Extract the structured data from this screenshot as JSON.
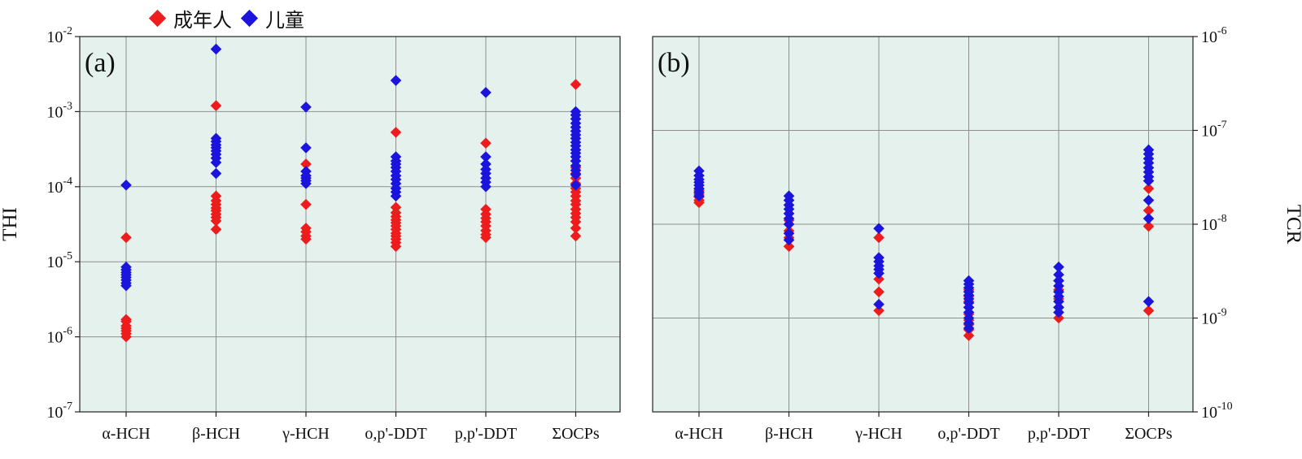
{
  "legend": {
    "adult": {
      "label": "成年人",
      "color": "#ee1c1c"
    },
    "child": {
      "label": "儿童",
      "color": "#1a14dc"
    }
  },
  "chart_data": [
    {
      "type": "scatter",
      "panel_label": "(a)",
      "ylabel": "THI",
      "yscale": "log",
      "ylim": [
        1e-07,
        0.01
      ],
      "y_ticks": [
        {
          "base": "10",
          "exp": "-7",
          "value": 1e-07
        },
        {
          "base": "10",
          "exp": "-6",
          "value": 1e-06
        },
        {
          "base": "10",
          "exp": "-5",
          "value": 1e-05
        },
        {
          "base": "10",
          "exp": "-4",
          "value": 0.0001
        },
        {
          "base": "10",
          "exp": "-3",
          "value": 0.001
        },
        {
          "base": "10",
          "exp": "-2",
          "value": 0.01
        }
      ],
      "categories": [
        "α-HCH",
        "β-HCH",
        "γ-HCH",
        "o,p'-DDT",
        "p,p'-DDT",
        "ΣOCPs"
      ],
      "series": [
        {
          "name": "成年人",
          "values": [
            [
              2.1e-05,
              1.7e-06,
              1.6e-06,
              1.4e-06,
              1.3e-06,
              1.2e-06,
              1.1e-06,
              1e-06
            ],
            [
              0.0012,
              7.5e-05,
              6.5e-05,
              5.8e-05,
              5.2e-05,
              4.8e-05,
              4.3e-05,
              3.9e-05,
              3.5e-05,
              2.7e-05
            ],
            [
              0.0002,
              0.00014,
              5.8e-05,
              2.8e-05,
              2.5e-05,
              2.2e-05,
              2e-05
            ],
            [
              0.00053,
              5.3e-05,
              4.5e-05,
              4e-05,
              3.6e-05,
              3.3e-05,
              3e-05,
              2.7e-05,
              2.4e-05,
              2.2e-05,
              2e-05,
              1.8e-05,
              1.6e-05
            ],
            [
              0.00038,
              5e-05,
              4.3e-05,
              3.8e-05,
              3.4e-05,
              3e-05,
              2.6e-05,
              2.3e-05,
              2.1e-05
            ],
            [
              0.0023,
              0.00018,
              0.00015,
              0.00013,
              0.00011,
              9.5e-05,
              8.5e-05,
              7.5e-05,
              6.5e-05,
              5.8e-05,
              5e-05,
              4.4e-05,
              3.9e-05,
              3.4e-05,
              2.8e-05,
              2.2e-05
            ]
          ]
        },
        {
          "name": "儿童",
          "values": [
            [
              0.000105,
              8.5e-06,
              7.8e-06,
              7.2e-06,
              6.7e-06,
              6.2e-06,
              5.7e-06,
              5.2e-06,
              4.8e-06
            ],
            [
              0.0068,
              0.00044,
              0.0004,
              0.00036,
              0.00033,
              0.0003,
              0.00027,
              0.00024,
              0.00021,
              0.00015
            ],
            [
              0.00115,
              0.00033,
              0.00016,
              0.00014,
              0.00013,
              0.00012,
              0.00011
            ],
            [
              0.0026,
              0.00025,
              0.00022,
              0.0002,
              0.00018,
              0.00016,
              0.00014,
              0.000125,
              0.00011,
              9.5e-05,
              8.5e-05,
              7.5e-05
            ],
            [
              0.0018,
              0.00025,
              0.0002,
              0.00017,
              0.00015,
              0.00013,
              0.000115,
              0.0001
            ],
            [
              0.001,
              0.0009,
              0.0008,
              0.0007,
              0.00062,
              0.00055,
              0.00049,
              0.00044,
              0.00039,
              0.00035,
              0.00031,
              0.00028,
              0.00025,
              0.00022,
              0.00019,
              0.000165,
              0.000145,
              0.000105
            ]
          ]
        }
      ],
      "grid": true
    },
    {
      "type": "scatter",
      "panel_label": "(b)",
      "ylabel": "TCR",
      "yscale": "log",
      "ylim": [
        1e-10,
        1e-06
      ],
      "y_ticks": [
        {
          "base": "10",
          "exp": "-10",
          "value": 1e-10
        },
        {
          "base": "10",
          "exp": "-9",
          "value": 1e-09
        },
        {
          "base": "10",
          "exp": "-8",
          "value": 1e-08
        },
        {
          "base": "10",
          "exp": "-7",
          "value": 1e-07
        },
        {
          "base": "10",
          "exp": "-6",
          "value": 1e-06
        }
      ],
      "categories": [
        "α-HCH",
        "β-HCH",
        "γ-HCH",
        "o,p'-DDT",
        "p,p'-DDT",
        "ΣOCPs"
      ],
      "series": [
        {
          "name": "成年人",
          "values": [
            [
              2.3e-08,
              2.1e-08,
              1.95e-08,
              1.8e-08,
              1.7e-08
            ],
            [
              1.1e-08,
              8.5e-09,
              7.2e-09,
              5.8e-09
            ],
            [
              7.2e-09,
              2.6e-09,
              1.9e-09,
              1.2e-09
            ],
            [
              2e-09,
              1.7e-09,
              1.5e-09,
              1.3e-09,
              1.1e-09,
              9.5e-10,
              8.5e-10,
              7.5e-10,
              6.5e-10
            ],
            [
              2.5e-09,
              2e-09,
              1.6e-09,
              1.3e-09,
              1e-09
            ],
            [
              3.2e-08,
              2.4e-08,
              1.4e-08,
              9.5e-09,
              1.2e-09
            ]
          ]
        },
        {
          "name": "儿童",
          "values": [
            [
              3.7e-08,
              3.3e-08,
              3e-08,
              2.8e-08,
              2.6e-08,
              2.4e-08,
              2.2e-08,
              2e-08
            ],
            [
              2e-08,
              1.8e-08,
              1.6e-08,
              1.45e-08,
              1.3e-08,
              1.15e-08,
              1e-08,
              8e-09,
              6.8e-09
            ],
            [
              9e-09,
              4.4e-09,
              4e-09,
              3.6e-09,
              3.3e-09,
              3e-09,
              1.4e-09
            ],
            [
              2.5e-09,
              2.3e-09,
              2.1e-09,
              1.9e-09,
              1.75e-09,
              1.6e-09,
              1.45e-09,
              1.3e-09,
              1.15e-09,
              1e-09,
              8.8e-10,
              7.8e-10
            ],
            [
              3.5e-09,
              2.9e-09,
              2.5e-09,
              2.2e-09,
              1.9e-09,
              1.7e-09,
              1.5e-09,
              1.3e-09,
              1.15e-09
            ],
            [
              6.2e-08,
              5.6e-08,
              5e-08,
              4.5e-08,
              4e-08,
              3.6e-08,
              3.2e-08,
              2.9e-08,
              1.8e-08,
              1.15e-08,
              1.5e-09
            ]
          ]
        }
      ],
      "grid": true
    }
  ]
}
